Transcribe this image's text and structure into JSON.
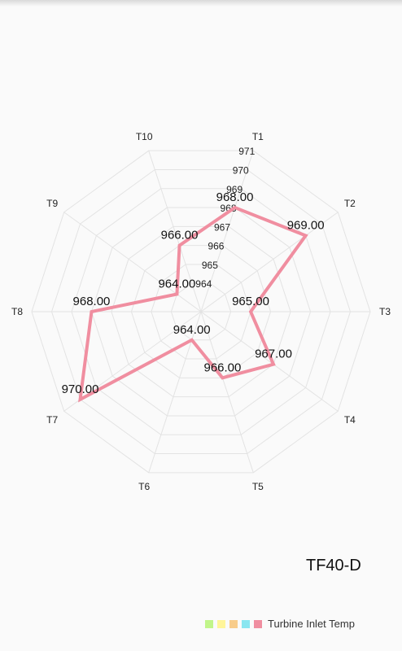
{
  "chart_data": {
    "type": "radar",
    "title": "TF40-D",
    "categories": [
      "T1",
      "T2",
      "T3",
      "T4",
      "T5",
      "T6",
      "T7",
      "T8",
      "T9",
      "T10"
    ],
    "series": [
      {
        "name": "Turbine Inlet Temp",
        "color": "#f08ea0",
        "values": [
          968,
          969,
          965,
          967,
          966,
          964,
          970,
          968,
          964,
          966
        ]
      }
    ],
    "value_labels": [
      "968.00",
      "969.00",
      "965.00",
      "967.00",
      "966.00",
      "964.00",
      "970.00",
      "968.00",
      "964.00",
      "966.00"
    ],
    "rlim": [
      963,
      971
    ],
    "r_tick_labels": [
      "964",
      "965",
      "966",
      "967",
      "968",
      "969",
      "970",
      "971"
    ],
    "grid": true,
    "legend_colors": [
      "#c1f58a",
      "#fff59a",
      "#f8cc8a",
      "#8ae6f0",
      "#f08ea0"
    ],
    "legend_position": "bottom-right"
  }
}
